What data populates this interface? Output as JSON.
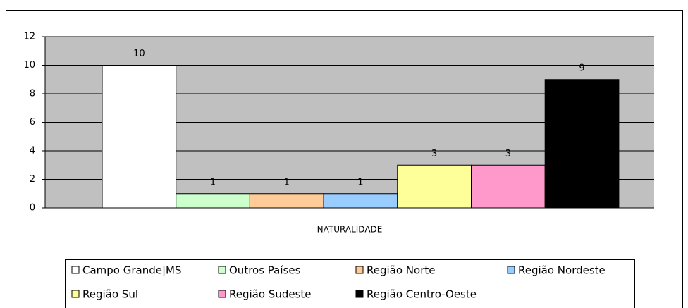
{
  "chart_data": {
    "type": "bar",
    "categories": [
      "NATURALIDADE"
    ],
    "series": [
      {
        "name": "Campo Grande|MS",
        "color": "#ffffff",
        "values": [
          10
        ]
      },
      {
        "name": "Outros Países",
        "color": "#ccffcc",
        "values": [
          1
        ]
      },
      {
        "name": "Região Norte",
        "color": "#ffcc99",
        "values": [
          1
        ]
      },
      {
        "name": "Região Nordeste",
        "color": "#99ccff",
        "values": [
          1
        ]
      },
      {
        "name": "Região Sul",
        "color": "#ffff99",
        "values": [
          3
        ]
      },
      {
        "name": "Região Sudeste",
        "color": "#ff99cc",
        "values": [
          3
        ]
      },
      {
        "name": "Região Centro-Oeste",
        "color": "#000000",
        "values": [
          9
        ]
      }
    ],
    "ylim": [
      0,
      12
    ],
    "yticks": [
      0,
      2,
      4,
      6,
      8,
      10,
      12
    ],
    "grid": true,
    "plot_background": "#c0c0c0"
  }
}
